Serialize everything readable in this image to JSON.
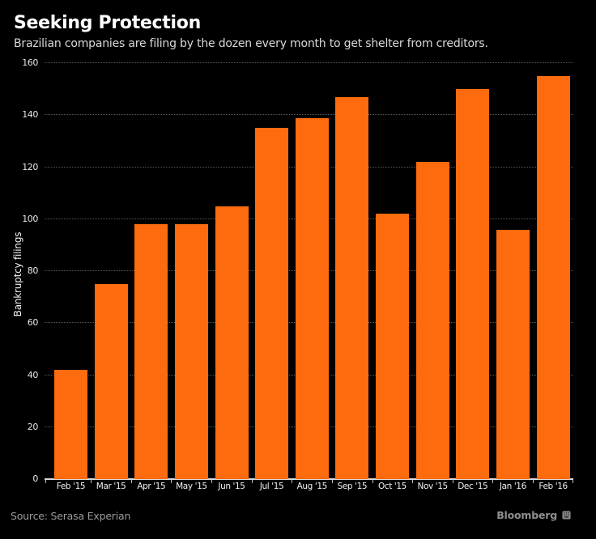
{
  "header": {
    "title": "Seeking Protection",
    "subtitle": "Brazilian companies are filing by the dozen every month to get shelter from creditors."
  },
  "chart_data": {
    "type": "bar",
    "title": "Seeking Protection",
    "subtitle": "Brazilian companies are filing by the dozen every month to get shelter from creditors.",
    "categories": [
      "Feb '15",
      "Mar '15",
      "Apr '15",
      "May '15",
      "Jun '15",
      "Jul '15",
      "Aug '15",
      "Sep '15",
      "Oct '15",
      "Nov '15",
      "Dec '15",
      "Jan '16",
      "Feb '16"
    ],
    "values": [
      42,
      75,
      98,
      98,
      105,
      135,
      139,
      147,
      102,
      122,
      150,
      96,
      155
    ],
    "xlabel": "",
    "ylabel": "Bankruptcy filings",
    "ylim": [
      0,
      160
    ],
    "ytick_step": 20,
    "grid": "horizontal-dotted",
    "legend": "none",
    "bar_color": "#fd6b0e",
    "background_color": "#000000",
    "text_color": "#ffffff"
  },
  "footer": {
    "source": "Source: Serasa Experian",
    "brand": "Bloomberg",
    "brand_icon": "bloomberg-terminal-icon"
  }
}
